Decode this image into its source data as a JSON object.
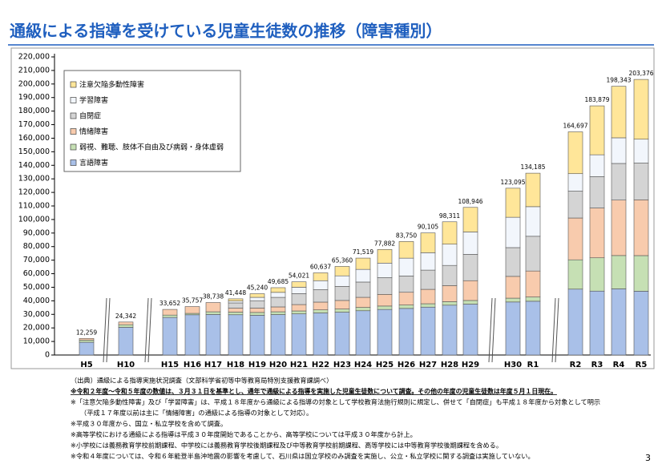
{
  "chart_data": {
    "type": "stacked-bar",
    "title": "通級による指導を受けている児童生徒数の推移（障害種別）",
    "categories": [
      "H5",
      "H10",
      "H15",
      "H16",
      "H17",
      "H18",
      "H19",
      "H20",
      "H21",
      "H22",
      "H23",
      "H24",
      "H25",
      "H26",
      "H27",
      "H28",
      "H29",
      "H30",
      "R1",
      "R2",
      "R3",
      "R4",
      "R5"
    ],
    "series": [
      {
        "name": "言語障害",
        "color": "#a9c0e8",
        "values": [
          9436,
          20461,
          27718,
          29683,
          29907,
          29713,
          29345,
          29860,
          30390,
          31066,
          31607,
          32674,
          33606,
          34375,
          35337,
          36793,
          37561,
          39134,
          39691,
          48632,
          47173,
          48835,
          47088
        ]
      },
      {
        "name": "弱視、難聴、肢体不自由及び病弱・身体虚弱",
        "color": "#c6e0b4",
        "values": [
          1557,
          1890,
          1750,
          1041,
          1995,
          1943,
          2067,
          2050,
          2127,
          2241,
          2329,
          2449,
          2537,
          2520,
          2497,
          2584,
          2689,
          2819,
          3114,
          21627,
          24554,
          24571,
          26274
        ]
      },
      {
        "name": "情緒障害",
        "color": "#f8cbad",
        "values": [
          1266,
          1991,
          4184,
          5033,
          6836,
          2898,
          3197,
          3591,
          4710,
          5737,
          6332,
          7450,
          8613,
          9392,
          10620,
          11824,
          14609,
          16073,
          19185,
          30847,
          36760,
          40914,
          41171
        ]
      },
      {
        "name": "自閉症",
        "color": "#d4d4d4",
        "values": [
          null,
          null,
          null,
          null,
          null,
          3912,
          5469,
          7047,
          8064,
          9148,
          10342,
          11274,
          12308,
          12006,
          14189,
          14922,
          19407,
          21237,
          25635,
          19812,
          23128,
          27047,
          27096
        ]
      },
      {
        "name": "学習障害",
        "color": "#f2f6fc",
        "values": [
          null,
          null,
          null,
          null,
          null,
          1351,
          2485,
          3682,
          4726,
          6655,
          7813,
          9350,
          10769,
          13188,
          12853,
          15664,
          16545,
          22389,
          21854,
          12907,
          16155,
          18926,
          17623
        ]
      },
      {
        "name": "注意欠陥多動性障害",
        "color": "#ffe699",
        "values": [
          null,
          null,
          null,
          null,
          null,
          1631,
          2677,
          3455,
          4004,
          5790,
          6937,
          8322,
          10049,
          12269,
          14609,
          16524,
          18135,
          21443,
          24706,
          30872,
          36109,
          38050,
          44124
        ]
      }
    ],
    "totals": {
      "values": [
        12259,
        24342,
        33652,
        35757,
        38738,
        41448,
        45240,
        49685,
        54021,
        60637,
        65360,
        71519,
        77882,
        83750,
        90105,
        98311,
        108946,
        123095,
        134185,
        164697,
        183879,
        198343,
        203376
      ],
      "value_labels": [
        "12,259",
        "24,342",
        "33,652",
        "35,757",
        "38,738",
        "41,448",
        "45,240",
        "49,685",
        "54,021",
        "60,637",
        "65,360",
        "71,519",
        "77,882",
        "83,750",
        "90,105",
        "98,311",
        "108,946",
        "123,095",
        "134,185",
        "164,697",
        "183,879",
        "198,343",
        "203,376"
      ]
    },
    "ylim": [
      0,
      220000
    ],
    "yticks": [
      {
        "value": 0,
        "label": "0"
      },
      {
        "value": 10000,
        "label": "10,000"
      },
      {
        "value": 20000,
        "label": "20,000"
      },
      {
        "value": 30000,
        "label": "30,000"
      },
      {
        "value": 40000,
        "label": "40,000"
      },
      {
        "value": 50000,
        "label": "50,000"
      },
      {
        "value": 60000,
        "label": "60,000"
      },
      {
        "value": 70000,
        "label": "70,000"
      },
      {
        "value": 80000,
        "label": "80,000"
      },
      {
        "value": 90000,
        "label": "90,000"
      },
      {
        "value": 100000,
        "label": "100,000"
      },
      {
        "value": 110000,
        "label": "110,000"
      },
      {
        "value": 120000,
        "label": "120,000"
      },
      {
        "value": 130000,
        "label": "130,000"
      },
      {
        "value": 140000,
        "label": "140,000"
      },
      {
        "value": 150000,
        "label": "150,000"
      },
      {
        "value": 160000,
        "label": "160,000"
      },
      {
        "value": 170000,
        "label": "170,000"
      },
      {
        "value": 180000,
        "label": "180,000"
      },
      {
        "value": 190000,
        "label": "190,000"
      },
      {
        "value": 200000,
        "label": "200,000"
      },
      {
        "value": 210000,
        "label": "210,000"
      },
      {
        "value": 220000,
        "label": "220,000"
      }
    ],
    "grid": false,
    "legend": "top-left",
    "notes": [
      "（出典）通級による指導実施状況調査（文部科学省初等中等教育局特別支援教育課調べ）",
      "※令和２年度～令和５年度の数値は、３月３１日を基準とし、通年で通級による指導を実施した児童生徒数について調査。その他の年度の児童生徒数は年度５月１日現在。",
      "※「注意欠陥多動性障害」及び「学習障害」は、平成１８年度から通級による指導の対象として学校教育法施行規則に規定し、併せて「自閉症」も平成１８年度から対象として明示",
      "（平成１７年度以前は主に「情緒障害」の通級による指導の対象として対応）。",
      "※平成３０年度から、国立・私立学校を含めて調査。",
      "※高等学校における通級による指導は平成３０年度開始であることから、高等学校については平成３０年度から計上。",
      "※小学校には義務教育学校前期課程、中学校には義務教育学校後期課程及び中等教育学校前期課程、高等学校には中等教育学校後期課程を含める。",
      "※令和４年度については、令和６年能登半島沖地震の影響を考慮して、石川県は国立学校のみ調査を実施し、公立・私立学校に関する調査は実施していない。"
    ],
    "page_number": "3"
  }
}
